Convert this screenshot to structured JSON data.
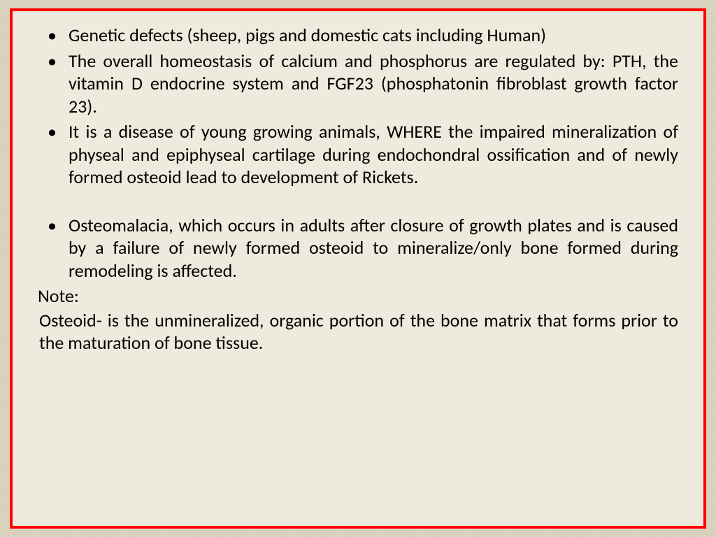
{
  "slide": {
    "border_color": "#ff0000",
    "background_color": "#eeeadd",
    "canvas_texture_color": "#ddd6c4",
    "text_color": "#000000",
    "font_family": "Calibri",
    "font_size_pt": 20,
    "bullets": [
      "Genetic defects (sheep, pigs and domestic cats including Human)",
      "The overall homeostasis of calcium and phosphorus are regulated by: PTH, the vitamin D endocrine system and FGF23 (phosphatonin fibroblast growth factor 23).",
      "It is a disease of young growing animals, WHERE the impaired mineralization of physeal and epiphyseal cartilage during endochondral ossification and of newly formed osteoid lead to development of Rickets.",
      "Osteomalacia, which occurs in adults after closure of growth plates and   is caused by a failure of newly formed osteoid to mineralize/only bone formed during remodeling is affected."
    ],
    "note_label": "Note:",
    "note_body": " Osteoid- is the unmineralized, organic portion of the bone matrix that forms prior to the maturation of bone tissue."
  }
}
